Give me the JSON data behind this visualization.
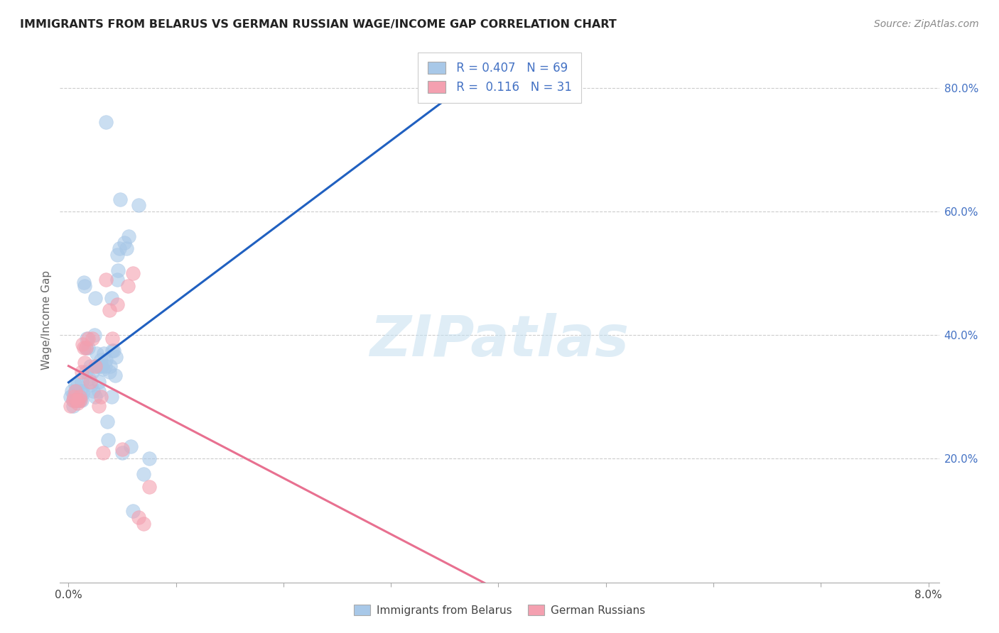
{
  "title": "IMMIGRANTS FROM BELARUS VS GERMAN RUSSIAN WAGE/INCOME GAP CORRELATION CHART",
  "source": "Source: ZipAtlas.com",
  "ylabel": "Wage/Income Gap",
  "ytick_vals": [
    0.2,
    0.4,
    0.6,
    0.8
  ],
  "ytick_labels": [
    "20.0%",
    "40.0%",
    "60.0%",
    "80.0%"
  ],
  "legend_r1": "R = 0.407",
  "legend_n1": "N = 69",
  "legend_r2": "R =  0.116",
  "legend_n2": "N = 31",
  "legend_text_color": "#4472c4",
  "blue_scatter_color": "#a8c8e8",
  "pink_scatter_color": "#f4a0b0",
  "blue_line_color": "#2060c0",
  "pink_line_color": "#e87090",
  "blue_legend_color": "#a8c8e8",
  "pink_legend_color": "#f4a0b0",
  "watermark_color": "#d8e8f0",
  "watermark_text": "ZIPatlas",
  "bottom_label_blue": "Immigrants from Belarus",
  "bottom_label_pink": "German Russians",
  "blue_x": [
    0.0002,
    0.0003,
    0.0004,
    0.0004,
    0.0005,
    0.0006,
    0.0006,
    0.0007,
    0.0007,
    0.0008,
    0.0009,
    0.001,
    0.001,
    0.0011,
    0.0011,
    0.0012,
    0.0012,
    0.0013,
    0.0013,
    0.0014,
    0.0015,
    0.0016,
    0.0016,
    0.0017,
    0.0018,
    0.0019,
    0.002,
    0.0021,
    0.0022,
    0.0023,
    0.0024,
    0.0025,
    0.0025,
    0.0026,
    0.0027,
    0.0028,
    0.0028,
    0.0029,
    0.003,
    0.0031,
    0.0032,
    0.0033,
    0.0034,
    0.0035,
    0.0036,
    0.0037,
    0.0038,
    0.0039,
    0.004,
    0.0041,
    0.0042,
    0.0043,
    0.0044,
    0.0045,
    0.0046,
    0.0047,
    0.0048,
    0.005,
    0.0052,
    0.0054,
    0.0056,
    0.0058,
    0.006,
    0.0065,
    0.007,
    0.0075,
    0.0035,
    0.004,
    0.0045
  ],
  "blue_y": [
    0.3,
    0.31,
    0.295,
    0.285,
    0.305,
    0.32,
    0.295,
    0.295,
    0.31,
    0.32,
    0.305,
    0.295,
    0.3,
    0.31,
    0.3,
    0.325,
    0.295,
    0.31,
    0.305,
    0.485,
    0.48,
    0.38,
    0.34,
    0.395,
    0.38,
    0.33,
    0.35,
    0.32,
    0.34,
    0.31,
    0.4,
    0.46,
    0.3,
    0.37,
    0.35,
    0.325,
    0.31,
    0.35,
    0.36,
    0.35,
    0.345,
    0.37,
    0.35,
    0.36,
    0.26,
    0.23,
    0.34,
    0.35,
    0.3,
    0.375,
    0.375,
    0.335,
    0.365,
    0.49,
    0.505,
    0.54,
    0.62,
    0.21,
    0.55,
    0.54,
    0.56,
    0.22,
    0.115,
    0.61,
    0.175,
    0.2,
    0.745,
    0.46,
    0.53
  ],
  "pink_x": [
    0.0002,
    0.0004,
    0.0005,
    0.0006,
    0.0007,
    0.0008,
    0.0009,
    0.001,
    0.0011,
    0.0012,
    0.0013,
    0.0014,
    0.0015,
    0.0016,
    0.0018,
    0.002,
    0.0022,
    0.0025,
    0.0028,
    0.003,
    0.0032,
    0.0035,
    0.0038,
    0.0041,
    0.0045,
    0.005,
    0.0055,
    0.006,
    0.0065,
    0.007,
    0.0075
  ],
  "pink_y": [
    0.285,
    0.295,
    0.3,
    0.31,
    0.295,
    0.29,
    0.295,
    0.3,
    0.295,
    0.34,
    0.385,
    0.38,
    0.355,
    0.38,
    0.395,
    0.325,
    0.395,
    0.35,
    0.285,
    0.3,
    0.21,
    0.49,
    0.44,
    0.395,
    0.45,
    0.215,
    0.48,
    0.5,
    0.105,
    0.095,
    0.155
  ],
  "xmin": 0.0,
  "xmax": 0.08,
  "ymin": 0.0,
  "ymax": 0.85
}
